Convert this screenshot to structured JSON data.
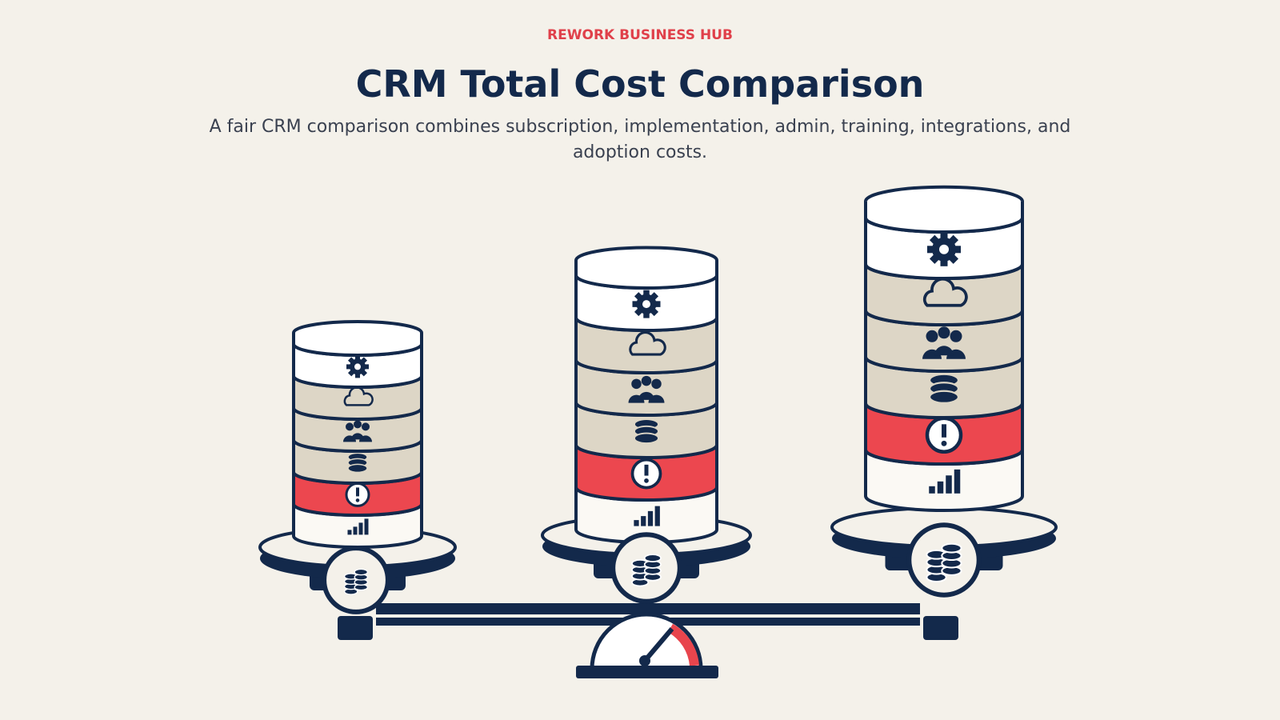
{
  "header": {
    "eyebrow": "REWORK BUSINESS HUB",
    "title": "CRM Total Cost Comparison",
    "subtitle": "A fair CRM comparison combines subscription, implementation, admin, training, integrations, and adoption costs."
  }
}
